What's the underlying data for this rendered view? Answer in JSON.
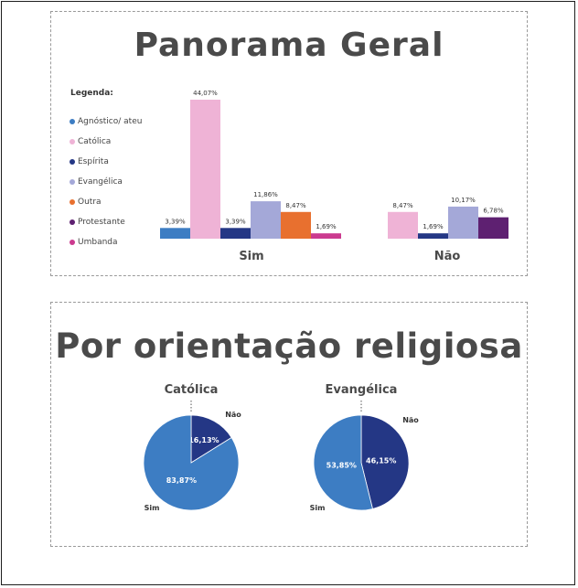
{
  "panels": {
    "general_title": "Panorama Geral",
    "orientation_title": "Por orientação religiosa"
  },
  "legend": {
    "title": "Legenda:",
    "items": [
      {
        "label": "Agnóstico/ ateu",
        "color": "#3d7dc3"
      },
      {
        "label": "Católica",
        "color": "#efb3d6"
      },
      {
        "label": "Espírita",
        "color": "#243785"
      },
      {
        "label": "Evangélica",
        "color": "#a4a8d8"
      },
      {
        "label": "Outra",
        "color": "#e8702f"
      },
      {
        "label": "Protestante",
        "color": "#5e2071"
      },
      {
        "label": "Umbanda",
        "color": "#cb3a8f"
      }
    ]
  },
  "chart_data": [
    {
      "type": "bar",
      "title": "Panorama Geral",
      "categories": [
        "Sim",
        "Não"
      ],
      "series": [
        {
          "name": "Agnóstico/ ateu",
          "values": [
            3.39,
            null
          ],
          "labels": [
            "3,39%",
            null
          ],
          "color": "#3d7dc3"
        },
        {
          "name": "Católica",
          "values": [
            44.07,
            8.47
          ],
          "labels": [
            "44,07%",
            "8,47%"
          ],
          "color": "#efb3d6"
        },
        {
          "name": "Espírita",
          "values": [
            3.39,
            1.69
          ],
          "labels": [
            "3,39%",
            "1,69%"
          ],
          "color": "#243785"
        },
        {
          "name": "Evangélica",
          "values": [
            11.86,
            10.17
          ],
          "labels": [
            "11,86%",
            "10,17%"
          ],
          "color": "#a4a8d8"
        },
        {
          "name": "Outra",
          "values": [
            8.47,
            null
          ],
          "labels": [
            "8,47%",
            null
          ],
          "color": "#e8702f"
        },
        {
          "name": "Protestante",
          "values": [
            null,
            6.78
          ],
          "labels": [
            null,
            "6,78%"
          ],
          "color": "#5e2071"
        },
        {
          "name": "Umbanda",
          "values": [
            1.69,
            null
          ],
          "labels": [
            "1,69%",
            null
          ],
          "color": "#cb3a8f"
        }
      ],
      "ylim": [
        0,
        44.07
      ],
      "grid": false,
      "legend_position": "left"
    },
    {
      "type": "pie",
      "title": "Católica",
      "slices": [
        {
          "label": "Não",
          "value": 16.13,
          "display": "16,13%",
          "color": "#243785"
        },
        {
          "label": "Sim",
          "value": 83.87,
          "display": "83,87%",
          "color": "#3d7dc3"
        }
      ]
    },
    {
      "type": "pie",
      "title": "Evangélica",
      "slices": [
        {
          "label": "Não",
          "value": 46.15,
          "display": "46,15%",
          "color": "#243785"
        },
        {
          "label": "Sim",
          "value": 53.85,
          "display": "53,85%",
          "color": "#3d7dc3"
        }
      ]
    }
  ]
}
